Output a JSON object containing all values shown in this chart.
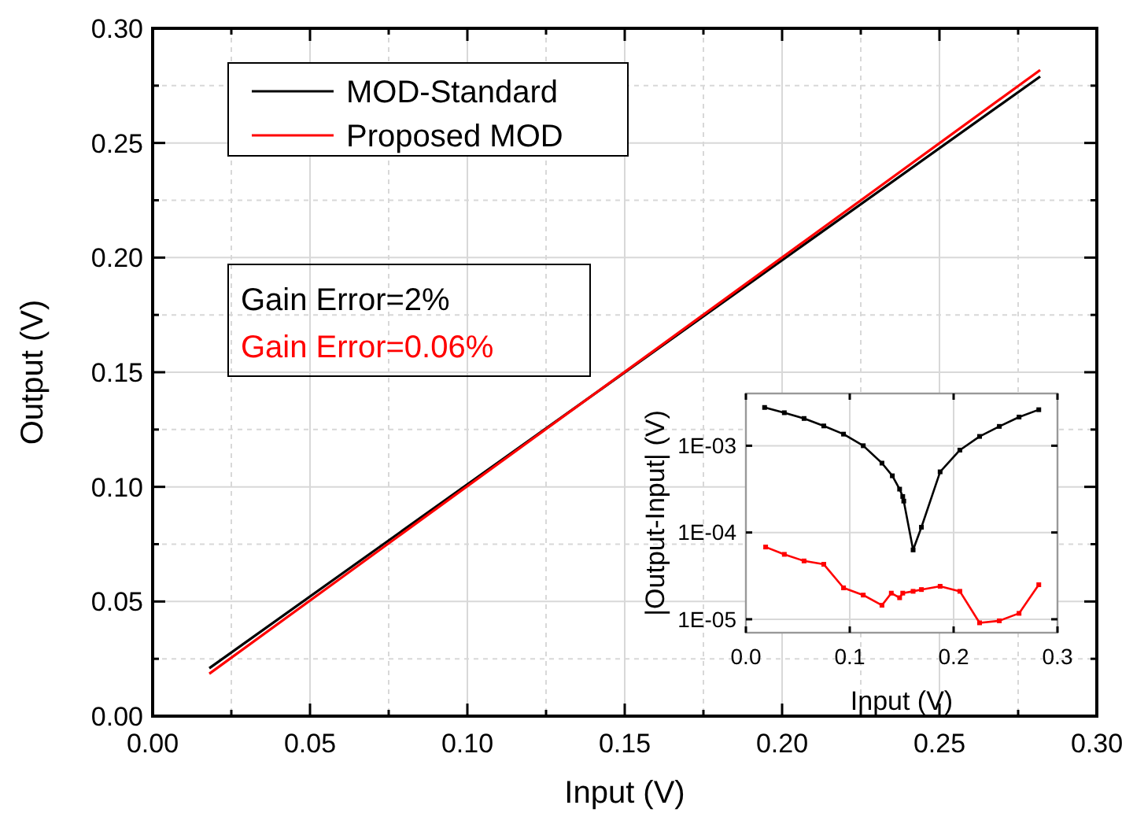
{
  "chart_data": [
    {
      "type": "line",
      "xlabel": "Input (V)",
      "ylabel": "Output (V)",
      "xlim": [
        0,
        0.3
      ],
      "ylim": [
        0,
        0.3
      ],
      "xticks": [
        {
          "value": 0,
          "label": "0.00"
        },
        {
          "value": 0.025,
          "label": null
        },
        0.05,
        {
          "value": 0.075,
          "label": null
        },
        {
          "value": 0.1,
          "label": "0.10"
        },
        {
          "value": 0.125,
          "label": null
        },
        0.15,
        {
          "value": 0.175,
          "label": null
        },
        {
          "value": 0.2,
          "label": "0.20"
        },
        {
          "value": 0.225,
          "label": null
        },
        0.25,
        {
          "value": 0.275,
          "label": null
        },
        {
          "value": 0.3,
          "label": "0.30"
        }
      ],
      "yticks": [
        {
          "value": 0,
          "label": "0.00"
        },
        {
          "value": 0.025,
          "label": null
        },
        0.05,
        {
          "value": 0.075,
          "label": null
        },
        {
          "value": 0.1,
          "label": "0.10"
        },
        {
          "value": 0.125,
          "label": null
        },
        0.15,
        {
          "value": 0.175,
          "label": null
        },
        {
          "value": 0.2,
          "label": "0.20"
        },
        {
          "value": 0.225,
          "label": null
        },
        0.25,
        {
          "value": 0.275,
          "label": null
        },
        {
          "value": 0.3,
          "label": "0.30"
        }
      ],
      "grid": true,
      "legend": "top left",
      "marker": "none",
      "line_style": "solid",
      "annotations": [
        "Gain Error=2%",
        "Gain Error=0.06%"
      ],
      "series": [
        {
          "name": "MOD-Standard",
          "color": "#000000",
          "x": [
            0.018,
            0.282
          ],
          "values": [
            0.0209,
            0.279
          ]
        },
        {
          "name": "Proposed MOD",
          "color": "#ff0000",
          "x": [
            0.018,
            0.282
          ],
          "values": [
            0.0185,
            0.2818
          ]
        }
      ]
    },
    {
      "type": "line",
      "xlabel": "Input (V)",
      "ylabel": "|Output-Input| (V)",
      "xlim": [
        0,
        0.3
      ],
      "ylim": [
        7e-06,
        0.004
      ],
      "log": "y",
      "xticks": [
        {
          "value": 0,
          "label": "0.0"
        },
        0.1,
        0.2,
        0.3
      ],
      "yticks": [
        {
          "value": 1e-05,
          "label": "1E-05"
        },
        {
          "value": 0.0001,
          "label": "1E-04"
        },
        {
          "value": 0.001,
          "label": "1E-03"
        }
      ],
      "grid": true,
      "legend": false,
      "marker": "square",
      "line_style": "solid",
      "series": [
        {
          "color": "#000000",
          "x": [
            0.018,
            0.037,
            0.056,
            0.075,
            0.094,
            0.113,
            0.131,
            0.141,
            0.148,
            0.151,
            0.152,
            0.161,
            0.169,
            0.187,
            0.206,
            0.225,
            0.244,
            0.263,
            0.282
          ],
          "values": [
            0.00276,
            0.0024,
            0.00206,
            0.00169,
            0.00136,
            0.001,
            0.00063,
            0.00045,
            0.000316,
            0.00026,
            0.00023,
            6.3e-05,
            0.000115,
            0.0005,
            0.00089,
            0.00128,
            0.00167,
            0.00214,
            0.0026
          ]
        },
        {
          "color": "#ff0000",
          "x": [
            0.019,
            0.037,
            0.056,
            0.075,
            0.094,
            0.113,
            0.131,
            0.14,
            0.148,
            0.151,
            0.161,
            0.169,
            0.187,
            0.206,
            0.225,
            0.244,
            0.263,
            0.282
          ],
          "values": [
            6.8e-05,
            5.6e-05,
            4.7e-05,
            4.3e-05,
            2.3e-05,
            1.9e-05,
            1.45e-05,
            2e-05,
            1.77e-05,
            2e-05,
            2.1e-05,
            2.2e-05,
            2.4e-05,
            2.1e-05,
            9.1e-06,
            9.6e-06,
            1.17e-05,
            2.5e-05
          ]
        }
      ]
    }
  ]
}
